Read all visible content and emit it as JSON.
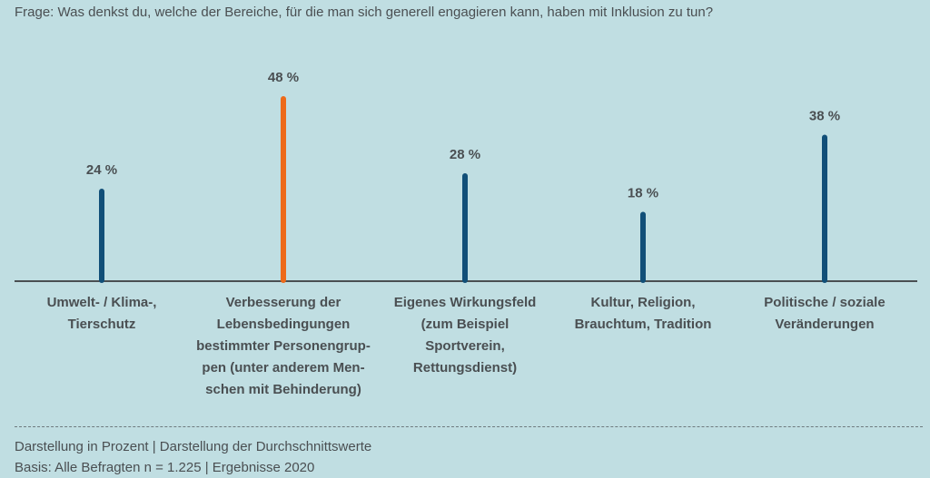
{
  "question": "Frage: Was denkst du, welche der Bereiche, für die man sich generell engagieren kann, haben mit Inklusion zu tun?",
  "footer": {
    "line1": "Darstellung in Prozent | Darstellung der Durchschnittswerte",
    "line2": "Basis: Alle Befragten n = 1.225 | Ergebnisse 2020"
  },
  "chart_data": {
    "type": "bar",
    "title": "Frage: Was denkst du, welche der Bereiche, für die man sich generell engagieren kann, haben mit Inklusion zu tun?",
    "xlabel": "",
    "ylabel": "",
    "ylim": [
      0,
      50
    ],
    "unit": "%",
    "grid": false,
    "categories": [
      [
        "Umwelt- / Klima-,",
        "Tierschutz"
      ],
      [
        "Verbesserung der",
        "Lebensbedingungen",
        "bestimmter Personengrup-",
        "pen (unter anderem Men-",
        "schen mit Behinderung)"
      ],
      [
        "Eigenes Wirkungsfeld",
        "(zum Beispiel",
        "Sportverein,",
        "Rettungsdienst)"
      ],
      [
        "Kultur, Religion,",
        "Brauchtum, Tradition"
      ],
      [
        "Politische / soziale",
        "Veränderungen"
      ]
    ],
    "values": [
      24,
      48,
      28,
      18,
      38
    ],
    "labels": [
      "24 %",
      "48 %",
      "28 %",
      "18 %",
      "38 %"
    ],
    "colors": [
      "#114f78",
      "#ed6a1a",
      "#114f78",
      "#114f78",
      "#114f78"
    ],
    "axis_color": "#4a4f52"
  }
}
